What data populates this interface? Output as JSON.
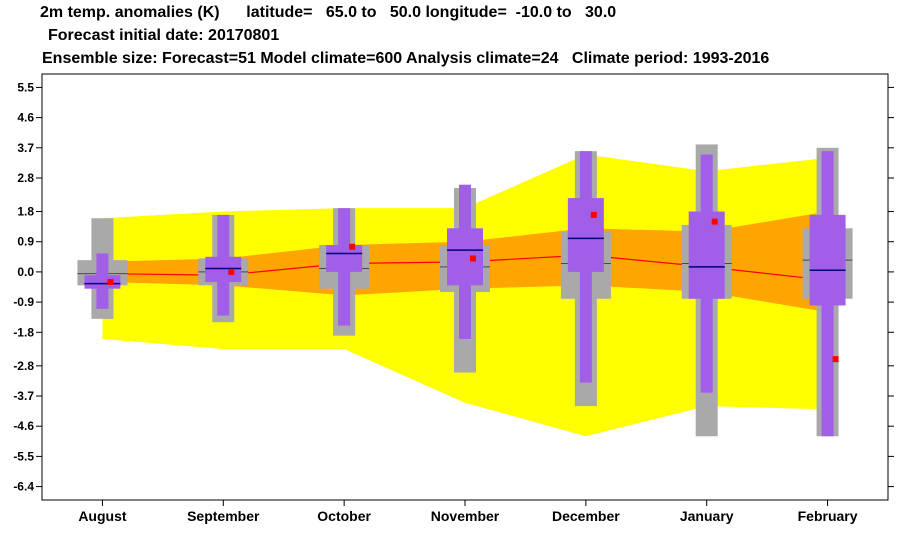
{
  "header": {
    "line1": "2m temp. anomalies (K)      latitude=   65.0 to   50.0 longitude=  -10.0 to   30.0",
    "line2": "Forecast initial date: 20170801",
    "line3": "Ensemble size: Forecast=51 Model climate=600 Analysis climate=24   Climate period: 1993-2016"
  },
  "chart_data": {
    "type": "box",
    "title": "2m temp. anomalies (K)",
    "categories": [
      "August",
      "September",
      "October",
      "November",
      "December",
      "January",
      "February"
    ],
    "y_ticks": [
      5.5,
      4.6,
      3.7,
      2.8,
      1.8,
      0.9,
      0.0,
      -0.9,
      -1.8,
      -2.8,
      -3.7,
      -4.6,
      -5.5,
      -6.4
    ],
    "y_tick_labels": [
      "5.5",
      "4.6",
      "3.7",
      "2.8",
      "1.8",
      "0.9",
      "0.0",
      "-0.9",
      "-1.8",
      "-2.8",
      "-3.7",
      "-4.6",
      "-5.5",
      "-6.4"
    ],
    "ylim": [
      -6.8,
      5.9
    ],
    "climate_range_outer": {
      "low": [
        -2.0,
        -2.3,
        -2.3,
        -3.9,
        -4.9,
        -4.0,
        -4.1
      ],
      "high": [
        1.6,
        1.8,
        1.9,
        1.9,
        3.5,
        3.0,
        3.4
      ]
    },
    "climate_range_inner": {
      "low": [
        -0.3,
        -0.4,
        -0.7,
        -0.5,
        -0.4,
        -0.6,
        -1.2
      ],
      "high": [
        0.3,
        0.4,
        0.8,
        0.9,
        1.3,
        1.2,
        1.8
      ]
    },
    "climate_median_line": [
      -0.05,
      -0.1,
      0.25,
      0.3,
      0.5,
      0.15,
      -0.25
    ],
    "model_climate_boxes": [
      {
        "min": -1.4,
        "q1": -0.4,
        "median": -0.05,
        "q3": 0.35,
        "max": 1.6
      },
      {
        "min": -1.5,
        "q1": -0.4,
        "median": 0.0,
        "q3": 0.4,
        "max": 1.7
      },
      {
        "min": -1.9,
        "q1": -0.5,
        "median": 0.1,
        "q3": 0.8,
        "max": 1.9
      },
      {
        "min": -3.0,
        "q1": -0.6,
        "median": 0.15,
        "q3": 0.8,
        "max": 2.5
      },
      {
        "min": -4.0,
        "q1": -0.8,
        "median": 0.25,
        "q3": 1.2,
        "max": 3.6
      },
      {
        "min": -4.9,
        "q1": -0.8,
        "median": 0.25,
        "q3": 1.4,
        "max": 3.8
      },
      {
        "min": -4.9,
        "q1": -0.8,
        "median": 0.35,
        "q3": 1.3,
        "max": 3.7
      }
    ],
    "forecast_boxes": [
      {
        "min": -1.1,
        "q1": -0.5,
        "median": -0.35,
        "q3": -0.1,
        "max": 0.55
      },
      {
        "min": -1.3,
        "q1": -0.3,
        "median": 0.1,
        "q3": 0.45,
        "max": 1.7
      },
      {
        "min": -1.6,
        "q1": 0.0,
        "median": 0.55,
        "q3": 0.8,
        "max": 1.9
      },
      {
        "min": -2.0,
        "q1": -0.4,
        "median": 0.65,
        "q3": 1.3,
        "max": 2.6
      },
      {
        "min": -3.3,
        "q1": 0.0,
        "median": 1.0,
        "q3": 2.2,
        "max": 3.6
      },
      {
        "min": -3.6,
        "q1": -0.8,
        "median": 0.15,
        "q3": 1.8,
        "max": 3.5
      },
      {
        "min": -4.9,
        "q1": -1.0,
        "median": 0.05,
        "q3": 1.7,
        "max": 3.6
      }
    ],
    "observed_points": [
      -0.3,
      0.0,
      0.75,
      0.4,
      1.7,
      1.5,
      -2.6
    ],
    "colors": {
      "outer_band": "#ffff00",
      "inner_band": "#ffa500",
      "median_line": "#ff0000",
      "model_climate": "#a9a9a9",
      "forecast": "#a15fe8",
      "median_bar": "#000080",
      "observed": "#ff0000"
    }
  }
}
